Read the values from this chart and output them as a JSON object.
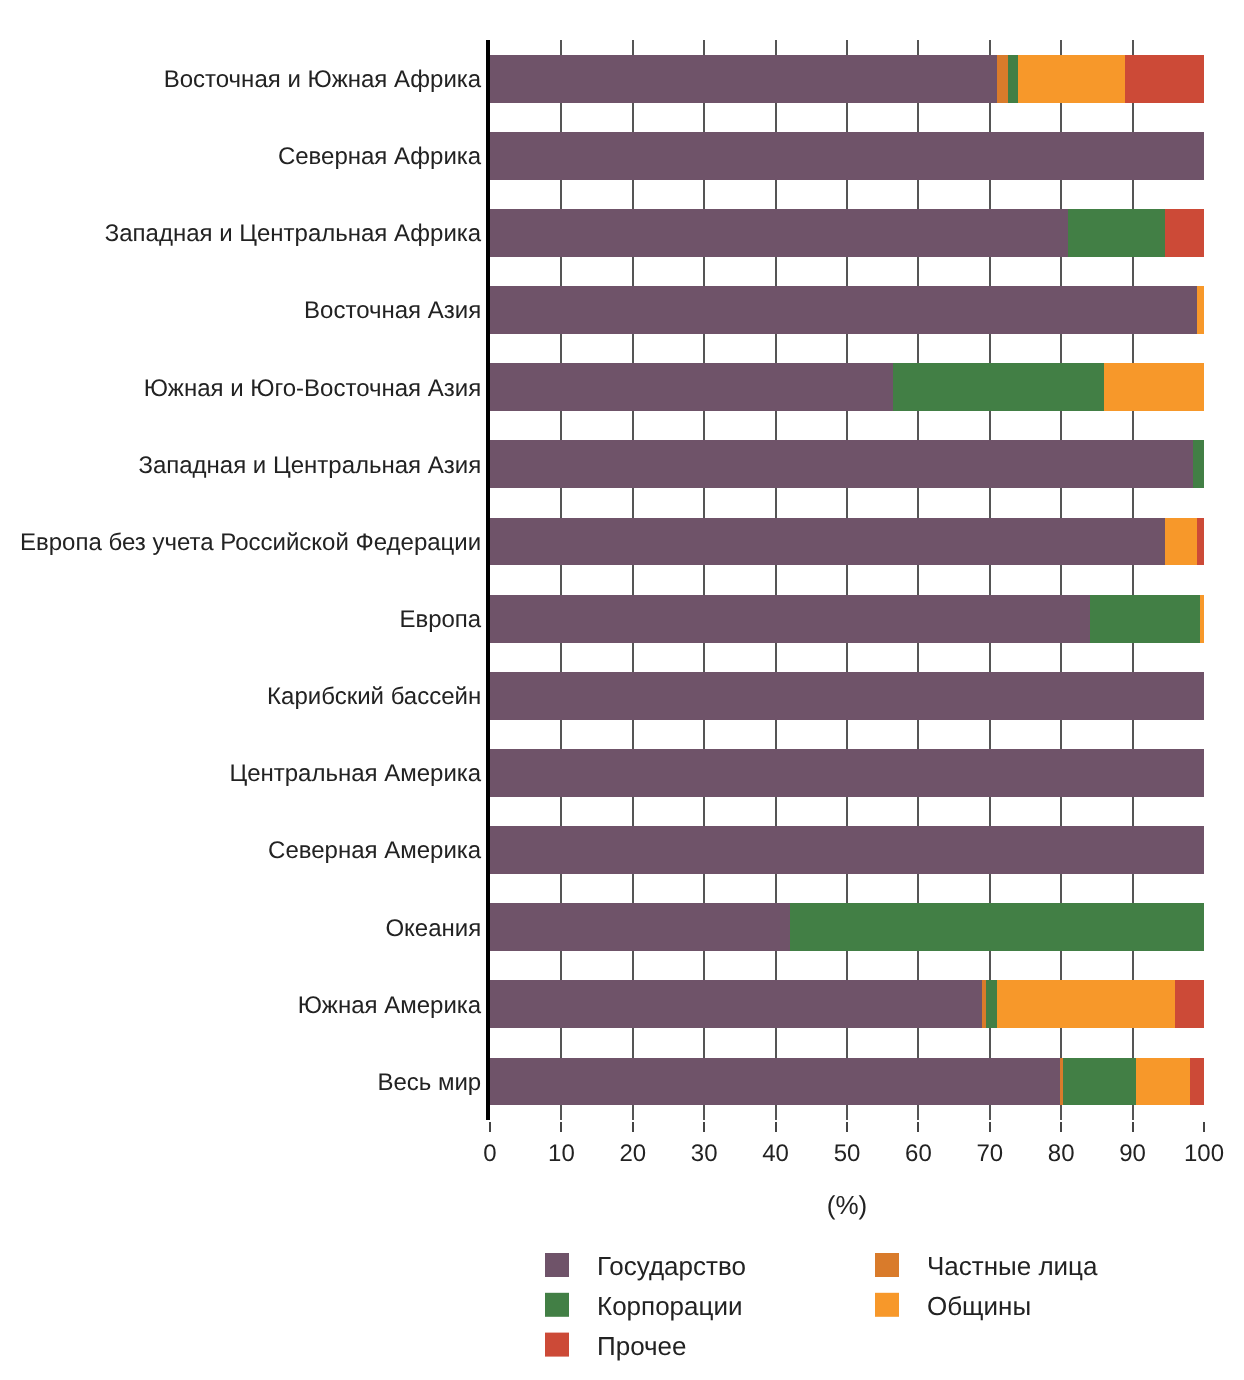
{
  "chart_data": {
    "type": "bar",
    "orientation": "horizontal",
    "stacked": true,
    "xlabel": "(%)",
    "categories": [
      "Восточная и Южная Африка",
      "Северная Африка",
      "Западная и Центральная Африка",
      "Восточная Азия",
      "Южная и Юго-Восточная Азия",
      "Западная и Центральная Азия",
      "Европа без учета Российской Федерации",
      "Европа",
      "Карибский бассейн",
      "Центральная Америка",
      "Северная Америка",
      "Океания",
      "Южная Америка",
      "Весь мир"
    ],
    "series": [
      {
        "name": "Государство",
        "color": "#6f5369",
        "values": [
          71,
          100,
          81,
          99,
          56.5,
          98.5,
          94.5,
          84,
          100,
          100,
          100,
          42,
          69,
          80
        ]
      },
      {
        "name": "Частные лица",
        "color": "#d97b2b",
        "values": [
          1.5,
          null,
          null,
          null,
          null,
          null,
          null,
          null,
          null,
          null,
          null,
          null,
          0.5,
          0.3
        ]
      },
      {
        "name": "Корпорации",
        "color": "#427f45",
        "values": [
          1.5,
          null,
          13.5,
          null,
          29.5,
          1.5,
          null,
          15.5,
          null,
          null,
          null,
          58,
          1.5,
          10.2
        ]
      },
      {
        "name": "Общины",
        "color": "#f7982a",
        "values": [
          15,
          null,
          null,
          1,
          14,
          null,
          4.5,
          0.5,
          null,
          null,
          null,
          null,
          25,
          7.5
        ]
      },
      {
        "name": "Прочее",
        "color": "#cc4a37",
        "values": [
          11,
          null,
          5.5,
          null,
          null,
          null,
          1,
          null,
          null,
          null,
          null,
          null,
          4,
          2
        ]
      }
    ],
    "xlim": [
      0,
      100
    ],
    "xticks": [
      0,
      10,
      20,
      30,
      40,
      50,
      60,
      70,
      80,
      90,
      100
    ],
    "grid": "x",
    "legend": "bottom"
  }
}
